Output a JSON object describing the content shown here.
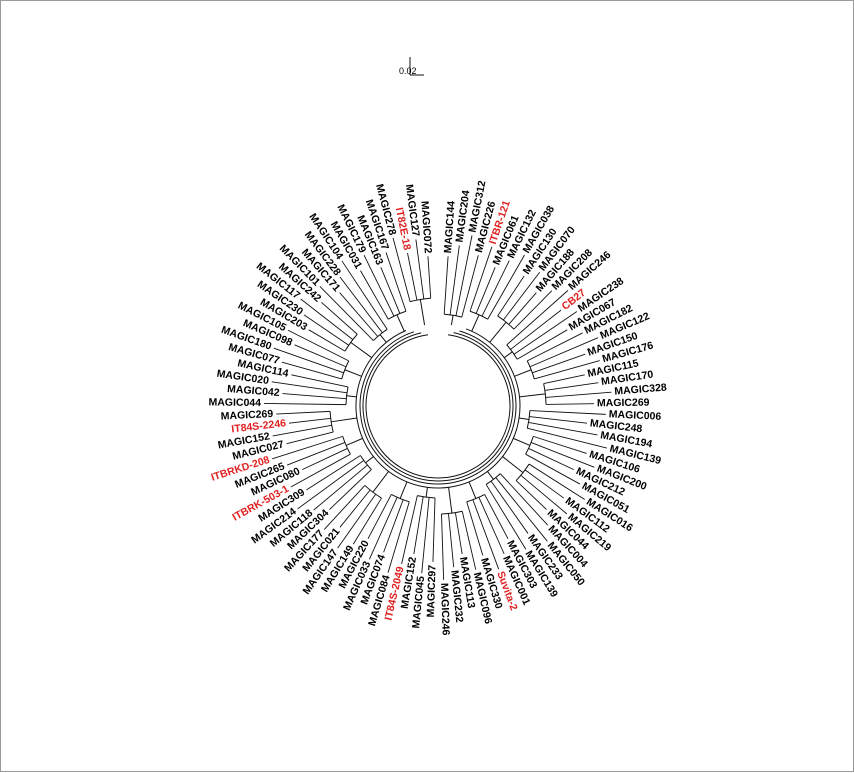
{
  "figure": {
    "scale_bar_label": "0.02",
    "colors": {
      "line": "#111111",
      "label": "#000000",
      "highlight": "#e02020",
      "frame": "#9a9a9a"
    }
  },
  "tree": {
    "leaves": [
      "MAGIC144",
      "MAGIC204",
      "MAGIC312",
      "MAGIC226",
      "ITBR-121",
      "MAGIC061",
      "MAGIC132",
      "MAGIC038",
      "MAGIC130",
      "MAGIC070",
      "MAGIC188",
      "MAGIC208",
      "MAGIC246",
      "CB27",
      "MAGIC238",
      "MAGIC067",
      "MAGIC182",
      "MAGIC122",
      "MAGIC150",
      "MAGIC176",
      "MAGIC115",
      "MAGIC170",
      "MAGIC328",
      "MAGIC269",
      "MAGIC006",
      "MAGIC248",
      "MAGIC194",
      "MAGIC139",
      "MAGIC106",
      "MAGIC200",
      "MAGIC212",
      "MAGIC051",
      "MAGIC016",
      "MAGIC112",
      "MAGIC219",
      "MAGIC044",
      "MAGIC004",
      "MAGIC050",
      "MAGIC233",
      "MAGIC139",
      "MAGIC303",
      "MAGIC001",
      "Suvita-2",
      "MAGIC330",
      "MAGIC096",
      "MAGIC113",
      "MAGIC232",
      "MAGIC246",
      "MAGIC297",
      "MAGIC045",
      "MAGIC152",
      "IT84S-2049",
      "MAGIC084",
      "MAGIC074",
      "MAGIC033",
      "MAGIC220",
      "MAGIC149",
      "MAGIC147",
      "MAGIC021",
      "MAGIC177",
      "MAGIC304",
      "MAGIC118",
      "MAGIC214",
      "MAGIC309",
      "ITBRK-503-1",
      "MAGIC080",
      "MAGIC265",
      "ITBRKD-208",
      "MAGIC027",
      "MAGIC152",
      "IT84S-2246",
      "MAGIC269",
      "MAGIC044",
      "MAGIC042",
      "MAGIC020",
      "MAGIC114",
      "MAGIC077",
      "MAGIC180",
      "MAGIC098",
      "MAGIC105",
      "MAGIC203",
      "MAGIC230",
      "MAGIC117",
      "MAGIC242",
      "MAGIC101",
      "MAGIC171",
      "MAGIC228",
      "MAGIC104",
      "MAGIC031",
      "MAGIC179",
      "MAGIC163",
      "MAGIC167",
      "MAGIC278",
      "IT82E-18",
      "MAGIC127",
      "MAGIC072"
    ]
  }
}
